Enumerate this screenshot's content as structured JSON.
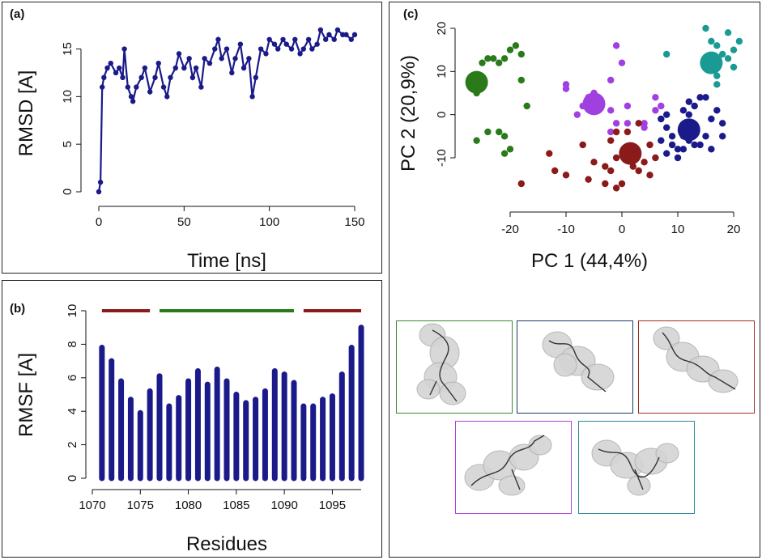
{
  "panels": {
    "a": {
      "label": "(a)",
      "chart_data": {
        "type": "line",
        "xlabel": "Time [ns]",
        "ylabel": "RMSD [A]",
        "xlim": [
          0,
          150
        ],
        "ylim": [
          0,
          17
        ],
        "xticks": [
          "0",
          "50",
          "100",
          "150"
        ],
        "yticks": [
          "0",
          "5",
          "10",
          "15"
        ],
        "series": [
          {
            "name": "RMSD",
            "color": "#1a1a8a",
            "x": [
              0,
              1,
              2,
              3,
              5,
              7,
              10,
              12,
              14,
              15,
              17,
              19,
              20,
              22,
              25,
              27,
              30,
              33,
              35,
              38,
              40,
              42,
              45,
              47,
              50,
              53,
              55,
              57,
              60,
              62,
              65,
              68,
              70,
              72,
              75,
              78,
              80,
              83,
              85,
              88,
              90,
              92,
              95,
              98,
              100,
              103,
              105,
              108,
              110,
              113,
              115,
              118,
              120,
              123,
              125,
              128,
              130,
              133,
              135,
              138,
              140,
              143,
              145,
              148,
              150
            ],
            "y": [
              0,
              1,
              11,
              12,
              13,
              13.5,
              12.5,
              13,
              12,
              15,
              11,
              10,
              9.5,
              11,
              12,
              13,
              10.5,
              12,
              13.5,
              11,
              10,
              12,
              13,
              14.5,
              13,
              14,
              12,
              13,
              11,
              14,
              13.5,
              15,
              16,
              14,
              15,
              12.5,
              14,
              15.5,
              13,
              14,
              10,
              12,
              15,
              14.5,
              16,
              15.5,
              15,
              16,
              15.5,
              15,
              16,
              14.5,
              15,
              16,
              15,
              15.5,
              17,
              16,
              16.5,
              16,
              17,
              16.5,
              16.5,
              16,
              16.5
            ]
          }
        ]
      }
    },
    "b": {
      "label": "(b)",
      "chart_data": {
        "type": "bar",
        "xlabel": "Residues",
        "ylabel": "RMSF [A]",
        "xlim": [
          1070,
          1098
        ],
        "ylim": [
          0,
          10
        ],
        "xticks": [
          "1070",
          "1075",
          "1080",
          "1085",
          "1090",
          "1095"
        ],
        "yticks": [
          "0",
          "2",
          "4",
          "6",
          "8",
          "10"
        ],
        "categories": [
          1071,
          1072,
          1073,
          1074,
          1075,
          1076,
          1077,
          1078,
          1079,
          1080,
          1081,
          1082,
          1083,
          1084,
          1085,
          1086,
          1087,
          1088,
          1089,
          1090,
          1091,
          1092,
          1093,
          1094,
          1095,
          1096,
          1097,
          1098
        ],
        "values": [
          7.8,
          7.0,
          5.8,
          4.7,
          3.9,
          5.2,
          6.1,
          4.3,
          4.8,
          5.8,
          6.4,
          5.6,
          6.5,
          5.8,
          5.0,
          4.5,
          4.7,
          5.2,
          6.4,
          6.2,
          5.7,
          4.3,
          4.3,
          4.7,
          4.9,
          6.2,
          7.8,
          9.0
        ],
        "color": "#1a1a8a",
        "segments": [
          {
            "from": 1071,
            "to": 1076,
            "y": 10,
            "color": "#8b1a1a"
          },
          {
            "from": 1077,
            "to": 1091,
            "y": 10,
            "color": "#2a7a1a"
          },
          {
            "from": 1092,
            "to": 1098,
            "y": 10,
            "color": "#8b1a1a"
          }
        ]
      }
    },
    "c": {
      "label": "(c)",
      "chart_data": {
        "type": "scatter",
        "xlabel": "PC 1 (44,4%)",
        "ylabel": "PC 2 (20,9%)",
        "xlim": [
          -28,
          22
        ],
        "ylim": [
          -17,
          21
        ],
        "xticks": [
          "-20",
          "-10",
          "0",
          "10",
          "20"
        ],
        "yticks": [
          "-10",
          "0",
          "10",
          "20"
        ],
        "series": [
          {
            "name": "cluster-green",
            "color": "#2a7a1a",
            "centroid": [
              -26,
              7.5
            ],
            "points": [
              [
                -26,
                5
              ],
              [
                -25,
                12
              ],
              [
                -24,
                13
              ],
              [
                -23,
                13
              ],
              [
                -22,
                12
              ],
              [
                -21,
                13
              ],
              [
                -20,
                15
              ],
              [
                -19,
                16
              ],
              [
                -18,
                14
              ],
              [
                -18,
                8
              ],
              [
                -17,
                2
              ],
              [
                -22,
                -4
              ],
              [
                -21,
                -5
              ],
              [
                -20,
                -8
              ],
              [
                -21,
                -9
              ],
              [
                -24,
                -4
              ],
              [
                -26,
                -6
              ]
            ]
          },
          {
            "name": "cluster-teal",
            "color": "#1a9a95",
            "centroid": [
              16,
              12
            ],
            "points": [
              [
                8,
                14
              ],
              [
                15,
                20
              ],
              [
                16,
                17
              ],
              [
                17,
                16
              ],
              [
                18,
                14
              ],
              [
                19,
                13
              ],
              [
                20,
                15
              ],
              [
                20,
                11
              ],
              [
                17,
                9
              ],
              [
                19,
                19
              ],
              [
                21,
                17
              ],
              [
                17,
                7
              ]
            ]
          },
          {
            "name": "cluster-purple",
            "color": "#a040e0",
            "centroid": [
              -5,
              2.5
            ],
            "points": [
              [
                -10,
                7
              ],
              [
                -10,
                6
              ],
              [
                -8,
                0
              ],
              [
                -7,
                2
              ],
              [
                -6,
                4
              ],
              [
                -5,
                5
              ],
              [
                -2,
                1
              ],
              [
                -2,
                8
              ],
              [
                -1,
                16
              ],
              [
                0,
                12
              ],
              [
                1,
                2
              ],
              [
                1,
                -2
              ],
              [
                -1,
                -2
              ],
              [
                -2,
                -4
              ],
              [
                4,
                -3
              ],
              [
                6,
                4
              ],
              [
                6,
                1
              ],
              [
                7,
                2
              ],
              [
                4,
                -2
              ]
            ]
          },
          {
            "name": "cluster-navy",
            "color": "#1a1a8a",
            "centroid": [
              12,
              -3.5
            ],
            "points": [
              [
                7,
                -1
              ],
              [
                8,
                0
              ],
              [
                8,
                -3
              ],
              [
                9,
                -5
              ],
              [
                9,
                -7
              ],
              [
                10,
                -8
              ],
              [
                10,
                -10
              ],
              [
                11,
                1
              ],
              [
                12,
                3
              ],
              [
                12,
                0
              ],
              [
                13,
                2
              ],
              [
                14,
                4
              ],
              [
                15,
                4
              ],
              [
                16,
                -1
              ],
              [
                17,
                1
              ],
              [
                18,
                -2
              ],
              [
                18,
                -5
              ],
              [
                15,
                -5
              ],
              [
                16,
                -8
              ],
              [
                14,
                -7
              ],
              [
                13,
                -7
              ],
              [
                12,
                -6
              ],
              [
                11,
                -5
              ],
              [
                11,
                -8
              ],
              [
                7,
                -6
              ],
              [
                8,
                -9
              ]
            ]
          },
          {
            "name": "cluster-red",
            "color": "#8b1a1a",
            "centroid": [
              1.5,
              -9
            ],
            "points": [
              [
                -13,
                -9
              ],
              [
                -12,
                -13
              ],
              [
                -10,
                -14
              ],
              [
                -7,
                -7
              ],
              [
                -6,
                -15
              ],
              [
                -5,
                -11
              ],
              [
                -3,
                -16
              ],
              [
                -3,
                -12
              ],
              [
                -2,
                -13
              ],
              [
                -1,
                -10
              ],
              [
                -1,
                -17
              ],
              [
                0,
                -16
              ],
              [
                1,
                -4
              ],
              [
                2,
                -12
              ],
              [
                3,
                -13
              ],
              [
                4,
                -11
              ],
              [
                5,
                -14
              ],
              [
                5,
                -7
              ],
              [
                6,
                -10
              ],
              [
                -2,
                -6
              ],
              [
                -1,
                -4
              ],
              [
                -18,
                -16
              ],
              [
                3,
                -2
              ]
            ]
          }
        ]
      },
      "structures": [
        {
          "name": "structure-green",
          "border_color": "#3a8a2a"
        },
        {
          "name": "structure-navy",
          "border_color": "#1a3a6a"
        },
        {
          "name": "structure-red",
          "border_color": "#a02a1a"
        },
        {
          "name": "structure-purple",
          "border_color": "#b040e0"
        },
        {
          "name": "structure-teal",
          "border_color": "#2a8a95"
        }
      ]
    }
  }
}
